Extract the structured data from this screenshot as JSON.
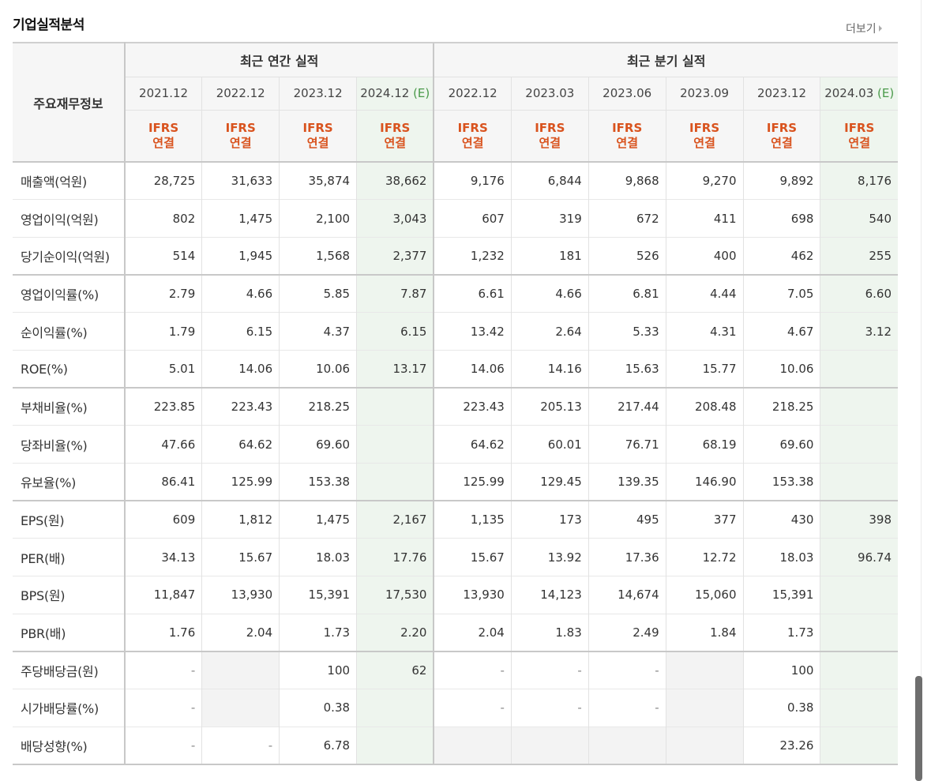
{
  "header": {
    "title": "기업실적분석",
    "more_label": "더보기"
  },
  "table": {
    "row_header_label": "주요재무정보",
    "group_annual": "최근 연간 실적",
    "group_quarter": "최근 분기 실적",
    "periods": [
      {
        "label": "2021.12",
        "est": ""
      },
      {
        "label": "2022.12",
        "est": ""
      },
      {
        "label": "2023.12",
        "est": ""
      },
      {
        "label": "2024.12",
        "est": "(E)"
      },
      {
        "label": "2022.12",
        "est": ""
      },
      {
        "label": "2023.03",
        "est": ""
      },
      {
        "label": "2023.06",
        "est": ""
      },
      {
        "label": "2023.09",
        "est": ""
      },
      {
        "label": "2023.12",
        "est": ""
      },
      {
        "label": "2024.03",
        "est": "(E)"
      }
    ],
    "standard": {
      "line1": "IFRS",
      "line2": "연결"
    },
    "rows": [
      {
        "label": "매출액(억원)",
        "values": [
          "28,725",
          "31,633",
          "35,874",
          "38,662",
          "9,176",
          "6,844",
          "9,868",
          "9,270",
          "9,892",
          "8,176"
        ]
      },
      {
        "label": "영업이익(억원)",
        "values": [
          "802",
          "1,475",
          "2,100",
          "3,043",
          "607",
          "319",
          "672",
          "411",
          "698",
          "540"
        ]
      },
      {
        "label": "당기순이익(억원)",
        "values": [
          "514",
          "1,945",
          "1,568",
          "2,377",
          "1,232",
          "181",
          "526",
          "400",
          "462",
          "255"
        ]
      },
      {
        "label": "영업이익률(%)",
        "values": [
          "2.79",
          "4.66",
          "5.85",
          "7.87",
          "6.61",
          "4.66",
          "6.81",
          "4.44",
          "7.05",
          "6.60"
        ]
      },
      {
        "label": "순이익률(%)",
        "values": [
          "1.79",
          "6.15",
          "4.37",
          "6.15",
          "13.42",
          "2.64",
          "5.33",
          "4.31",
          "4.67",
          "3.12"
        ]
      },
      {
        "label": "ROE(%)",
        "values": [
          "5.01",
          "14.06",
          "10.06",
          "13.17",
          "14.06",
          "14.16",
          "15.63",
          "15.77",
          "10.06",
          ""
        ]
      },
      {
        "label": "부채비율(%)",
        "values": [
          "223.85",
          "223.43",
          "218.25",
          "",
          "223.43",
          "205.13",
          "217.44",
          "208.48",
          "218.25",
          ""
        ]
      },
      {
        "label": "당좌비율(%)",
        "values": [
          "47.66",
          "64.62",
          "69.60",
          "",
          "64.62",
          "60.01",
          "76.71",
          "68.19",
          "69.60",
          ""
        ]
      },
      {
        "label": "유보율(%)",
        "values": [
          "86.41",
          "125.99",
          "153.38",
          "",
          "125.99",
          "129.45",
          "139.35",
          "146.90",
          "153.38",
          ""
        ]
      },
      {
        "label": "EPS(원)",
        "values": [
          "609",
          "1,812",
          "1,475",
          "2,167",
          "1,135",
          "173",
          "495",
          "377",
          "430",
          "398"
        ]
      },
      {
        "label": "PER(배)",
        "values": [
          "34.13",
          "15.67",
          "18.03",
          "17.76",
          "15.67",
          "13.92",
          "17.36",
          "12.72",
          "18.03",
          "96.74"
        ]
      },
      {
        "label": "BPS(원)",
        "values": [
          "11,847",
          "13,930",
          "15,391",
          "17,530",
          "13,930",
          "14,123",
          "14,674",
          "15,060",
          "15,391",
          ""
        ]
      },
      {
        "label": "PBR(배)",
        "values": [
          "1.76",
          "2.04",
          "1.73",
          "2.20",
          "2.04",
          "1.83",
          "2.49",
          "1.84",
          "1.73",
          ""
        ]
      },
      {
        "label": "주당배당금(원)",
        "values": [
          "-",
          "",
          "100",
          "62",
          "-",
          "-",
          "-",
          "",
          "100",
          ""
        ]
      },
      {
        "label": "시가배당률(%)",
        "values": [
          "-",
          "",
          "0.38",
          "",
          "-",
          "-",
          "-",
          "",
          "0.38",
          ""
        ]
      },
      {
        "label": "배당성향(%)",
        "values": [
          "-",
          "-",
          "6.78",
          "",
          "",
          "",
          "",
          "",
          "23.26",
          ""
        ]
      }
    ]
  }
}
